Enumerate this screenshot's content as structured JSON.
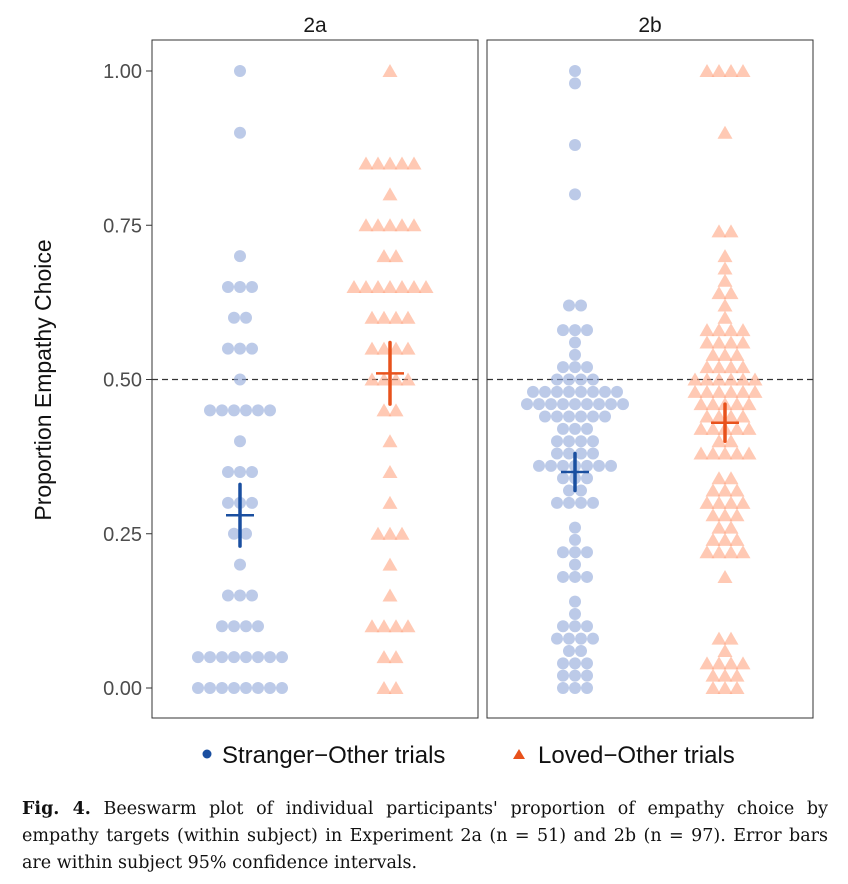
{
  "chart_data": {
    "type": "scatter",
    "subtype": "beeswarm",
    "ylabel": "Proportion Empathy Choice",
    "ylim": [
      0,
      1
    ],
    "yticks": [
      "0.00",
      "0.25",
      "0.50",
      "0.75",
      "1.00"
    ],
    "yticks_values": [
      0,
      0.25,
      0.5,
      0.75,
      1
    ],
    "reference_line": 0.5,
    "grid": false,
    "legend_placement": "bottom",
    "legend": [
      "Stranger−Other trials",
      "Loved−Other trials"
    ],
    "colors": {
      "stranger_point": "#8fa6d8",
      "stranger_mean": "#1a4fa0",
      "loved_point": "#ffa582",
      "loved_mean": "#e8521c"
    },
    "panels": [
      {
        "title": "2a",
        "groups": [
          {
            "series": "Stranger−Other trials",
            "mean": 0.28,
            "ci": [
              0.23,
              0.33
            ],
            "counts": {
              "1.00": 1,
              "0.90": 1,
              "0.70": 1,
              "0.65": 3,
              "0.60": 2,
              "0.55": 3,
              "0.50": 1,
              "0.45": 6,
              "0.40": 1,
              "0.35": 3,
              "0.30": 3,
              "0.25": 2,
              "0.20": 1,
              "0.15": 3,
              "0.10": 4,
              "0.05": 8,
              "0.00": 8
            }
          },
          {
            "series": "Loved−Other trials",
            "mean": 0.51,
            "ci": [
              0.46,
              0.56
            ],
            "counts": {
              "1.00": 1,
              "0.85": 5,
              "0.80": 1,
              "0.75": 5,
              "0.70": 2,
              "0.65": 7,
              "0.60": 4,
              "0.55": 4,
              "0.50": 4,
              "0.45": 2,
              "0.40": 1,
              "0.35": 1,
              "0.30": 1,
              "0.25": 3,
              "0.20": 1,
              "0.15": 1,
              "0.10": 4,
              "0.05": 2,
              "0.00": 2
            }
          }
        ]
      },
      {
        "title": "2b",
        "groups": [
          {
            "series": "Stranger−Other trials",
            "mean": 0.35,
            "ci": [
              0.32,
              0.38
            ],
            "counts": {
              "1.00": 1,
              "0.98": 1,
              "0.88": 1,
              "0.80": 1,
              "0.62": 2,
              "0.58": 3,
              "0.56": 1,
              "0.54": 1,
              "0.52": 3,
              "0.50": 4,
              "0.48": 8,
              "0.46": 9,
              "0.44": 6,
              "0.42": 3,
              "0.40": 4,
              "0.38": 4,
              "0.36": 7,
              "0.34": 3,
              "0.32": 2,
              "0.30": 4,
              "0.26": 1,
              "0.24": 1,
              "0.22": 3,
              "0.20": 1,
              "0.18": 3,
              "0.14": 1,
              "0.12": 1,
              "0.10": 3,
              "0.08": 4,
              "0.06": 2,
              "0.04": 3,
              "0.02": 3,
              "0.00": 3
            }
          },
          {
            "series": "Loved−Other trials",
            "mean": 0.43,
            "ci": [
              0.4,
              0.46
            ],
            "counts": {
              "1.00": 4,
              "0.90": 1,
              "0.74": 2,
              "0.70": 1,
              "0.68": 1,
              "0.66": 1,
              "0.64": 2,
              "0.62": 1,
              "0.60": 1,
              "0.58": 4,
              "0.56": 4,
              "0.54": 3,
              "0.52": 4,
              "0.50": 6,
              "0.48": 6,
              "0.46": 5,
              "0.44": 4,
              "0.42": 5,
              "0.40": 2,
              "0.38": 5,
              "0.34": 2,
              "0.32": 3,
              "0.30": 4,
              "0.28": 3,
              "0.26": 2,
              "0.24": 3,
              "0.22": 4,
              "0.18": 1,
              "0.08": 2,
              "0.06": 1,
              "0.04": 4,
              "0.02": 3,
              "0.00": 3
            }
          }
        ]
      }
    ]
  },
  "caption": {
    "label": "Fig. 4.",
    "text": "Beeswarm plot of individual participants' proportion of empathy choice by empathy targets (within subject) in Experiment 2a (n = 51) and 2b (n = 97). Error bars are within subject 95% confidence intervals."
  }
}
